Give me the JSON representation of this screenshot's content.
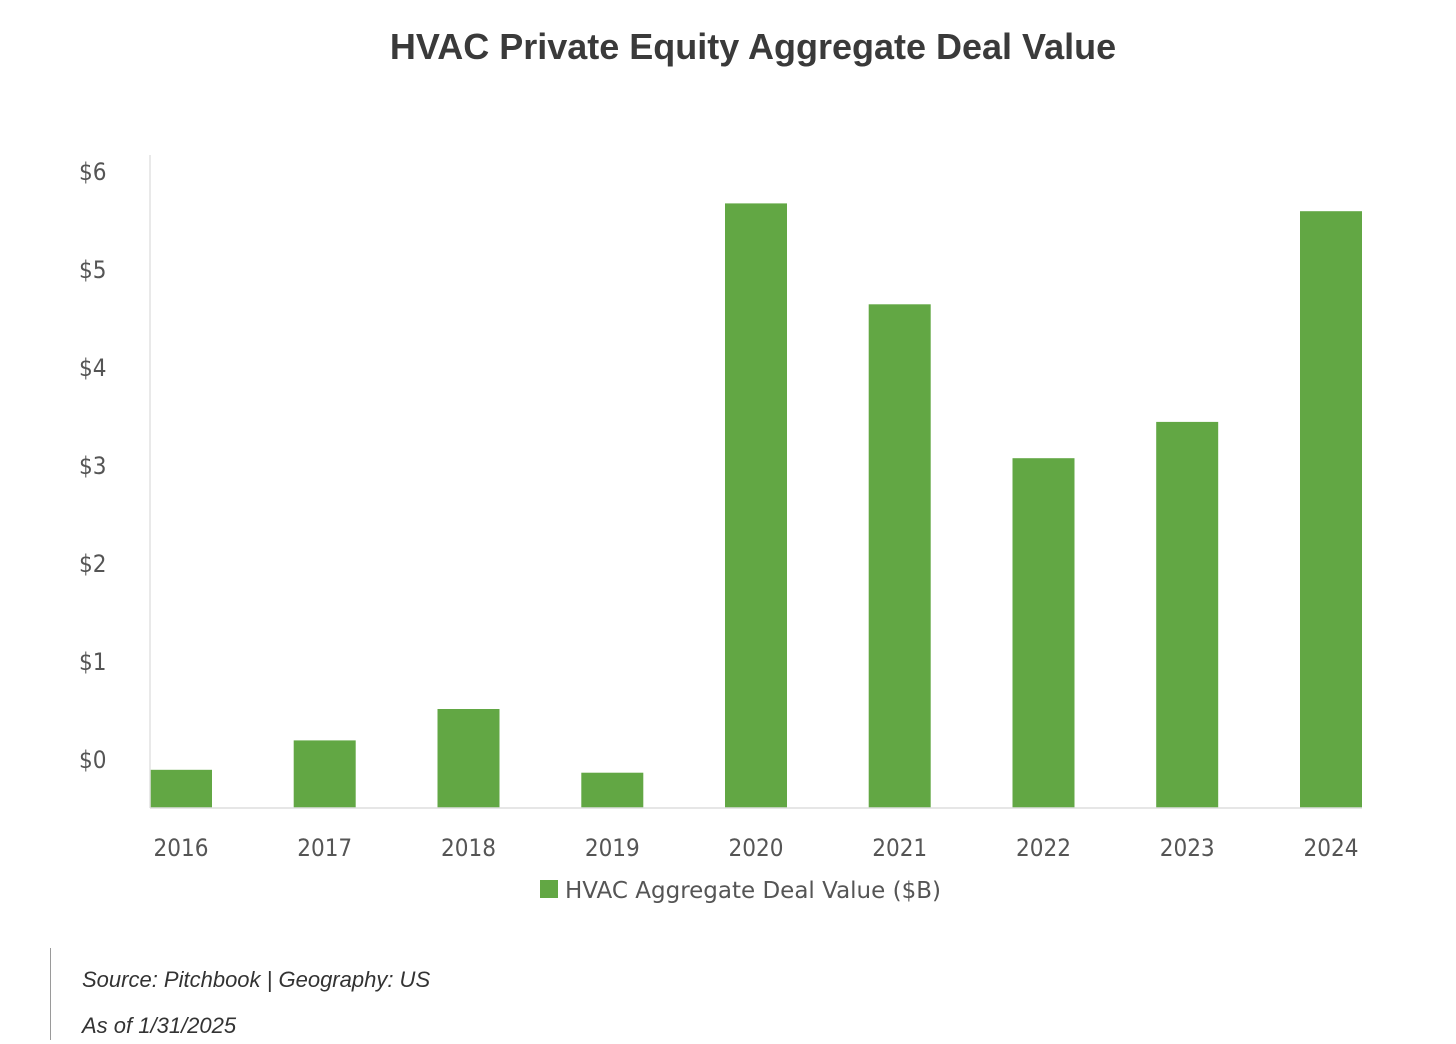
{
  "chart_data": {
    "type": "bar",
    "title": "HVAC Private Equity Aggregate Deal Value",
    "categories": [
      "2016",
      "2017",
      "2018",
      "2019",
      "2020",
      "2021",
      "2022",
      "2023",
      "2024"
    ],
    "series": [
      {
        "name": "HVAC Aggregate Deal Value ($B)",
        "color": "#62a744",
        "values": [
          -0.1,
          0.2,
          0.52,
          -0.13,
          5.68,
          4.65,
          3.08,
          3.45,
          5.6
        ]
      }
    ],
    "yticks": [
      "$0",
      "$1",
      "$2",
      "$3",
      "$4",
      "$5",
      "$6"
    ],
    "ytick_values": [
      0,
      1,
      2,
      3,
      4,
      5,
      6
    ],
    "ylim": [
      -0.53,
      6.15
    ],
    "xlabel": "",
    "ylabel": "",
    "grid": false,
    "legend_position": "bottom-center"
  },
  "footer": {
    "source": "Source: Pitchbook | Geography: US",
    "as_of": "As of 1/31/2025"
  }
}
